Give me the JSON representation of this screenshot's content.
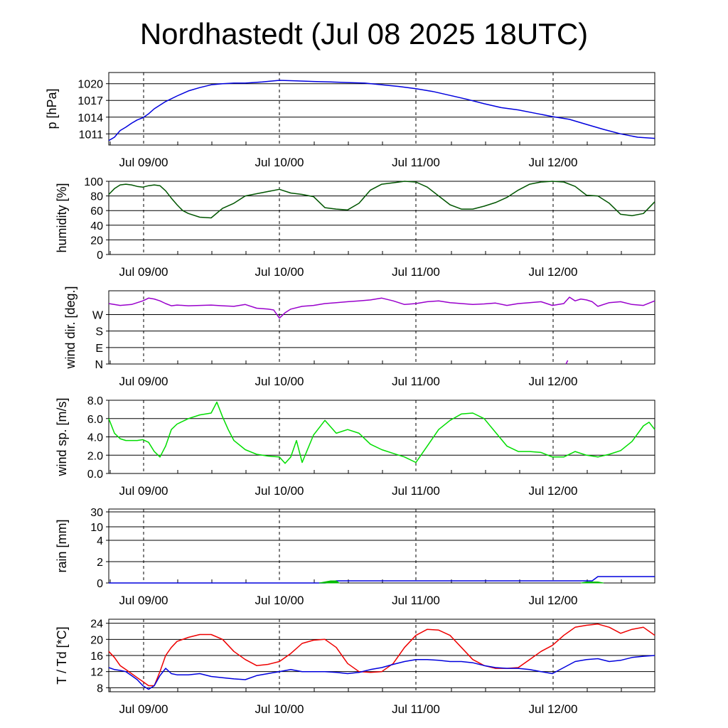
{
  "title": "Nordhastedt (Jul 08 2025 18UTC)",
  "x_tick_labels": [
    "Jul 09/00",
    "Jul 10/00",
    "Jul 11/00",
    "Jul 12/00"
  ],
  "chart_data": [
    {
      "type": "line",
      "ylabel": "p [hPa]",
      "ylim": [
        1009,
        1022
      ],
      "yticks": [
        1011,
        1014,
        1017,
        1020
      ],
      "ytick_labels": [
        "1011",
        "1014",
        "1017",
        "1020"
      ],
      "x_unit": "hours since Jul 08 18UTC",
      "xlim": [
        0,
        96
      ],
      "grid": "horizontal lines at y ticks, dashed vertical lines at each day",
      "series": [
        {
          "color": "#0000dd",
          "x": [
            0,
            1,
            2,
            3,
            4,
            5,
            6,
            7,
            8,
            10,
            12,
            14,
            16,
            18,
            20,
            22,
            24,
            27,
            30,
            33,
            36,
            39,
            42,
            45,
            48,
            51,
            54,
            57,
            60,
            63,
            66,
            69,
            72,
            75,
            78,
            81,
            84,
            87,
            90,
            93,
            96
          ],
          "y": [
            1009.8,
            1010.4,
            1011.6,
            1012.2,
            1012.9,
            1013.5,
            1013.9,
            1014.6,
            1015.5,
            1016.8,
            1017.8,
            1018.7,
            1019.3,
            1019.8,
            1020.0,
            1020.1,
            1020.1,
            1020.3,
            1020.6,
            1020.5,
            1020.4,
            1020.3,
            1020.2,
            1020.1,
            1019.8,
            1019.5,
            1019.1,
            1018.6,
            1017.9,
            1017.2,
            1016.4,
            1015.7,
            1015.3,
            1014.7,
            1014.1,
            1013.6,
            1012.7,
            1011.8,
            1011.0,
            1010.4,
            1010.2
          ]
        }
      ]
    },
    {
      "type": "line",
      "ylabel": "humidity [%]",
      "ylim": [
        0,
        100
      ],
      "yticks": [
        0,
        20,
        40,
        60,
        80,
        100
      ],
      "ytick_labels": [
        "0",
        "20",
        "40",
        "60",
        "80",
        "100"
      ],
      "xlim": [
        0,
        96
      ],
      "series": [
        {
          "color": "#005500",
          "x": [
            0,
            1,
            2,
            3,
            4,
            5,
            6,
            7,
            8,
            9,
            10,
            11,
            12,
            13,
            14,
            16,
            18,
            20,
            22,
            24,
            26,
            28,
            30,
            32,
            34,
            36,
            38,
            40,
            42,
            44,
            46,
            48,
            50,
            52,
            54,
            56,
            58,
            60,
            62,
            64,
            66,
            68,
            70,
            72,
            74,
            76,
            78,
            80,
            82,
            84,
            86,
            88,
            90,
            92,
            94,
            96
          ],
          "y": [
            82,
            90,
            95,
            96,
            95,
            93,
            92,
            94,
            95,
            94,
            87,
            77,
            68,
            60,
            56,
            51,
            50,
            63,
            70,
            80,
            83,
            86,
            89,
            84,
            82,
            79,
            64,
            62,
            61,
            70,
            88,
            96,
            98,
            100,
            99,
            92,
            80,
            68,
            62,
            62,
            66,
            71,
            78,
            88,
            96,
            99,
            100,
            99,
            93,
            81,
            80,
            70,
            55,
            53,
            56,
            72
          ]
        }
      ]
    },
    {
      "type": "line",
      "ylabel": "wind dir. [deg.]",
      "ylim": [
        0,
        400
      ],
      "yticks": [
        0,
        90,
        180,
        270
      ],
      "ytick_labels": [
        "N",
        "E",
        "S",
        "W"
      ],
      "xlim": [
        0,
        96
      ],
      "series": [
        {
          "color": "#9900cc",
          "x": [
            0,
            2,
            4,
            6,
            7,
            8,
            9,
            10,
            11,
            12,
            14,
            16,
            18,
            20,
            22,
            24,
            26,
            28,
            29,
            30,
            31,
            32,
            34,
            36,
            38,
            40,
            42,
            44,
            46,
            48,
            50,
            52,
            54,
            56,
            58,
            60,
            62,
            64,
            66,
            68,
            70,
            72,
            74,
            76,
            78,
            80,
            81,
            82,
            83,
            84,
            85,
            86,
            88,
            90,
            92,
            94,
            96
          ],
          "y": [
            330,
            320,
            325,
            345,
            360,
            355,
            345,
            330,
            318,
            322,
            318,
            320,
            322,
            318,
            315,
            325,
            305,
            300,
            295,
            250,
            280,
            300,
            315,
            320,
            330,
            335,
            340,
            345,
            350,
            360,
            345,
            325,
            330,
            340,
            345,
            335,
            330,
            325,
            328,
            333,
            320,
            330,
            335,
            340,
            320,
            330,
            365,
            345,
            355,
            350,
            340,
            315,
            335,
            340,
            325,
            320,
            345
          ]
        },
        {
          "color": "#9900cc",
          "x": [
            80.4,
            80.7
          ],
          "y": [
            0,
            20
          ]
        }
      ]
    },
    {
      "type": "line",
      "ylabel": "wind sp. [m/s]",
      "ylim": [
        0,
        8
      ],
      "yticks": [
        0,
        2,
        4,
        6,
        8
      ],
      "ytick_labels": [
        "0.0",
        "2.0",
        "4.0",
        "6.0",
        "8.0"
      ],
      "xlim": [
        0,
        96
      ],
      "series": [
        {
          "color": "#00dd00",
          "x": [
            0,
            1,
            2,
            3,
            4,
            5,
            6,
            7,
            8,
            9,
            10,
            11,
            12,
            14,
            16,
            18,
            19,
            20,
            21,
            22,
            24,
            26,
            28,
            30,
            31,
            32,
            33,
            34,
            36,
            38,
            40,
            42,
            44,
            46,
            48,
            50,
            52,
            54,
            56,
            58,
            60,
            62,
            64,
            66,
            68,
            70,
            72,
            74,
            76,
            78,
            80,
            82,
            84,
            86,
            88,
            90,
            92,
            94,
            95,
            96
          ],
          "y": [
            6.0,
            4.4,
            3.8,
            3.6,
            3.6,
            3.6,
            3.7,
            3.4,
            2.4,
            1.8,
            3.0,
            4.8,
            5.4,
            6.0,
            6.4,
            6.6,
            7.8,
            6.2,
            4.8,
            3.6,
            2.6,
            2.1,
            1.9,
            1.8,
            1.1,
            1.8,
            3.6,
            1.2,
            4.2,
            5.8,
            4.4,
            4.8,
            4.4,
            3.2,
            2.6,
            2.2,
            1.8,
            1.2,
            3.0,
            4.8,
            5.8,
            6.5,
            6.6,
            6.0,
            4.5,
            3.0,
            2.4,
            2.4,
            2.3,
            1.8,
            1.8,
            2.4,
            2.0,
            1.8,
            2.1,
            2.5,
            3.5,
            5.2,
            5.6,
            4.8
          ]
        }
      ]
    },
    {
      "type": "area",
      "ylabel": "rain [mm]",
      "ylim": [
        0,
        32
      ],
      "yticks": [
        0,
        2,
        4,
        10,
        30
      ],
      "ytick_labels": [
        "0",
        "2",
        "4",
        "10",
        "30"
      ],
      "xlim": [
        0,
        96
      ],
      "series": [
        {
          "color": "#0000dd",
          "x": [
            0,
            38,
            39,
            40,
            85,
            86,
            96
          ],
          "y": [
            0,
            0,
            0.05,
            0.2,
            0.2,
            0.6,
            0.6
          ]
        },
        {
          "color": "#00bb00",
          "x": [
            37,
            38,
            39,
            40,
            40.5
          ],
          "y": [
            0,
            0.1,
            0.2,
            0.2,
            0
          ]
        },
        {
          "color": "#00bb00",
          "x": [
            83,
            84,
            85,
            86,
            87
          ],
          "y": [
            0,
            0.1,
            0.1,
            0.1,
            0
          ]
        }
      ]
    },
    {
      "type": "line",
      "ylabel": "T / Td [*C]",
      "ylim": [
        7,
        25
      ],
      "yticks": [
        8,
        12,
        16,
        20,
        24
      ],
      "ytick_labels": [
        "8",
        "12",
        "16",
        "20",
        "24"
      ],
      "xlim": [
        0,
        96
      ],
      "series": [
        {
          "color": "#ee0000",
          "x": [
            0,
            1,
            2,
            3,
            4,
            5,
            6,
            7,
            8,
            9,
            10,
            11,
            12,
            14,
            16,
            18,
            20,
            22,
            24,
            26,
            28,
            30,
            32,
            34,
            36,
            38,
            40,
            42,
            44,
            46,
            48,
            50,
            52,
            54,
            56,
            58,
            60,
            62,
            64,
            66,
            68,
            70,
            72,
            74,
            76,
            78,
            80,
            82,
            84,
            86,
            88,
            90,
            92,
            94,
            96
          ],
          "y": [
            17,
            15.5,
            13.5,
            12.5,
            11.5,
            10.5,
            9.5,
            8.5,
            8.5,
            12,
            16,
            18,
            19.5,
            20.5,
            21.2,
            21.2,
            20,
            17,
            15,
            13.5,
            13.8,
            14.5,
            16.5,
            19,
            19.8,
            20,
            18,
            14,
            12,
            11.8,
            12,
            14,
            18,
            21,
            22.5,
            22.3,
            21,
            18,
            15,
            13.5,
            12.8,
            12.8,
            13,
            15,
            17,
            18.5,
            21,
            23,
            23.5,
            23.8,
            23,
            21.5,
            22.5,
            23,
            21
          ]
        },
        {
          "color": "#0000dd",
          "x": [
            0,
            1,
            2,
            3,
            4,
            5,
            6,
            7,
            8,
            9,
            10,
            11,
            12,
            14,
            16,
            18,
            20,
            22,
            24,
            26,
            28,
            30,
            32,
            34,
            36,
            38,
            40,
            42,
            44,
            46,
            48,
            50,
            52,
            54,
            56,
            58,
            60,
            62,
            64,
            66,
            68,
            70,
            72,
            74,
            76,
            78,
            80,
            82,
            84,
            86,
            88,
            90,
            92,
            94,
            96
          ],
          "y": [
            13,
            12.5,
            12.3,
            12,
            11,
            10,
            8.5,
            7.6,
            8.5,
            11,
            12.8,
            11.5,
            11.2,
            11.2,
            11.5,
            10.8,
            10.5,
            10.2,
            10,
            11,
            11.5,
            12,
            12.5,
            12,
            12,
            12,
            11.8,
            11.5,
            11.8,
            12.5,
            13,
            13.8,
            14.5,
            15,
            15,
            14.8,
            14.5,
            14.5,
            14.2,
            13.5,
            13,
            12.8,
            12.8,
            12.5,
            12,
            11.5,
            13,
            14.5,
            15,
            15.2,
            14.5,
            14.8,
            15.5,
            15.8,
            16
          ]
        }
      ]
    }
  ]
}
